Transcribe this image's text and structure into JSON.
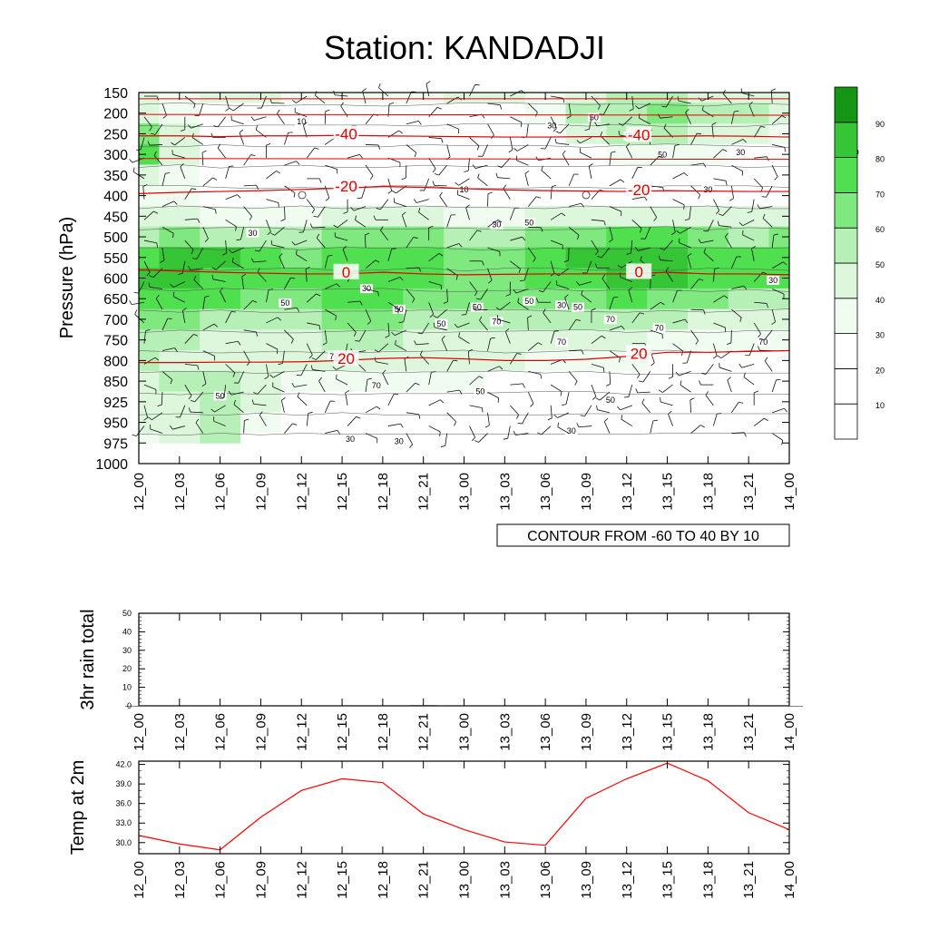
{
  "title": "Station: KANDADJI",
  "chart_data": [
    {
      "type": "heatmap",
      "name": "upper",
      "ylabel": "Pressure (hPa)",
      "y_ticks": [
        "150",
        "200",
        "250",
        "300",
        "350",
        "400",
        "450",
        "500",
        "550",
        "600",
        "650",
        "700",
        "750",
        "800",
        "850",
        "925",
        "950",
        "975",
        "1000"
      ],
      "x_ticks": [
        "12_00",
        "12_03",
        "12_06",
        "12_09",
        "12_12",
        "12_15",
        "12_18",
        "12_21",
        "13_00",
        "13_03",
        "13_06",
        "13_09",
        "13_12",
        "13_15",
        "13_18",
        "13_21",
        "14_00"
      ],
      "colorbar": {
        "ticks": [
          "10",
          "20",
          "30",
          "40",
          "50",
          "60",
          "70",
          "80",
          "90"
        ],
        "colors": [
          "#ffffff",
          "#ffffff",
          "#ffffff",
          "#f0fcf0",
          "#dcf7dc",
          "#b6f0b6",
          "#7fe87f",
          "#4fdf4f",
          "#35c535",
          "#149614"
        ]
      },
      "humidity_grid_rows_150_to_975": [
        [
          40,
          38,
          40,
          40,
          36,
          34,
          34,
          36,
          40,
          40,
          38,
          45,
          50,
          52,
          48,
          44,
          42
        ],
        [
          45,
          35,
          25,
          20,
          18,
          18,
          20,
          25,
          28,
          28,
          30,
          52,
          58,
          60,
          55,
          50,
          45
        ],
        [
          60,
          40,
          20,
          10,
          10,
          10,
          10,
          12,
          15,
          15,
          15,
          40,
          50,
          55,
          48,
          40,
          35
        ],
        [
          75,
          40,
          15,
          5,
          5,
          5,
          5,
          8,
          10,
          10,
          10,
          20,
          30,
          35,
          30,
          25,
          20
        ],
        [
          40,
          35,
          20,
          10,
          8,
          5,
          5,
          8,
          10,
          10,
          10,
          10,
          15,
          15,
          15,
          12,
          10
        ],
        [
          35,
          35,
          25,
          20,
          18,
          20,
          22,
          22,
          20,
          20,
          18,
          18,
          20,
          22,
          22,
          22,
          25
        ],
        [
          40,
          42,
          38,
          32,
          35,
          40,
          45,
          42,
          38,
          38,
          40,
          42,
          45,
          45,
          42,
          40,
          40
        ],
        [
          55,
          60,
          58,
          50,
          55,
          60,
          68,
          60,
          52,
          55,
          62,
          68,
          72,
          70,
          62,
          58,
          60
        ],
        [
          78,
          85,
          82,
          70,
          68,
          70,
          72,
          70,
          60,
          62,
          72,
          80,
          88,
          85,
          78,
          72,
          78
        ],
        [
          82,
          80,
          75,
          72,
          70,
          76,
          74,
          70,
          62,
          64,
          70,
          74,
          80,
          82,
          78,
          72,
          75
        ],
        [
          78,
          75,
          70,
          65,
          66,
          78,
          70,
          68,
          62,
          60,
          64,
          68,
          72,
          66,
          62,
          58,
          55
        ],
        [
          65,
          62,
          58,
          55,
          55,
          60,
          60,
          58,
          52,
          50,
          52,
          54,
          55,
          52,
          48,
          45,
          42
        ],
        [
          55,
          50,
          45,
          48,
          48,
          52,
          50,
          48,
          46,
          45,
          44,
          42,
          40,
          38,
          34,
          30,
          30
        ],
        [
          50,
          45,
          40,
          45,
          45,
          48,
          45,
          44,
          42,
          40,
          38,
          35,
          30,
          28,
          25,
          22,
          22
        ],
        [
          45,
          50,
          50,
          40,
          35,
          35,
          32,
          30,
          30,
          28,
          25,
          22,
          20,
          20,
          18,
          18,
          18
        ],
        [
          45,
          48,
          52,
          40,
          25,
          20,
          18,
          18,
          18,
          16,
          14,
          14,
          12,
          12,
          12,
          12,
          12
        ],
        [
          40,
          45,
          55,
          30,
          20,
          15,
          12,
          12,
          12,
          12,
          12,
          10,
          10,
          10,
          10,
          10,
          10
        ],
        [
          30,
          40,
          50,
          25,
          15,
          10,
          10,
          10,
          10,
          10,
          10,
          10,
          10,
          8,
          8,
          8,
          8
        ]
      ],
      "contour_labels": [
        "10",
        "30",
        "50",
        "70"
      ],
      "temperature_isotherms": [
        {
          "label": "-40",
          "pressure_by_time": [
            255,
            255,
            257,
            255,
            255,
            254,
            255,
            256,
            257,
            258,
            258,
            257,
            257,
            256,
            255,
            256,
            258
          ]
        },
        {
          "label": "-20",
          "pressure_by_time": [
            395,
            392,
            390,
            388,
            385,
            382,
            378,
            380,
            383,
            386,
            388,
            389,
            390,
            388,
            389,
            390,
            390
          ]
        },
        {
          "label": "0",
          "pressure_by_time": [
            580,
            583,
            586,
            588,
            590,
            590,
            586,
            590,
            592,
            591,
            590,
            590,
            590,
            586,
            590,
            590,
            592
          ]
        },
        {
          "label": "20",
          "pressure_by_time": [
            805,
            805,
            804,
            804,
            803,
            800,
            795,
            793,
            796,
            800,
            800,
            797,
            790,
            780,
            780,
            778,
            776
          ]
        }
      ],
      "annotation": "CONTOUR FROM -60 TO 40 BY 10"
    },
    {
      "type": "bar",
      "name": "rain",
      "ylabel": "3hr rain total",
      "ylim": [
        0,
        50
      ],
      "y_ticks": [
        "0",
        "10",
        "20",
        "30",
        "40",
        "50"
      ],
      "x_ticks": [
        "12_00",
        "12_03",
        "12_06",
        "12_09",
        "12_12",
        "12_15",
        "12_18",
        "12_21",
        "13_00",
        "13_03",
        "13_06",
        "13_09",
        "13_12",
        "13_15",
        "13_18",
        "13_21",
        "14_00"
      ],
      "values": [
        0,
        0,
        0,
        0,
        0,
        0,
        0,
        0.3,
        0,
        0,
        0,
        0,
        0,
        0,
        0,
        0,
        0
      ]
    },
    {
      "type": "line",
      "name": "temp",
      "ylabel": "Temp at 2m",
      "ylim": [
        28.3,
        42.5
      ],
      "y_ticks": [
        "30.0",
        "33.0",
        "36.0",
        "39.0",
        "42.0"
      ],
      "x_ticks": [
        "12_00",
        "12_03",
        "12_06",
        "12_09",
        "12_12",
        "12_15",
        "12_18",
        "12_21",
        "13_00",
        "13_03",
        "13_06",
        "13_09",
        "13_12",
        "13_15",
        "13_18",
        "13_21",
        "14_00"
      ],
      "values": [
        31.1,
        29.8,
        28.9,
        33.9,
        38.0,
        39.8,
        39.2,
        34.4,
        32.0,
        30.1,
        29.6,
        36.8,
        39.8,
        42.2,
        39.5,
        34.6,
        32.0
      ],
      "color": "#ff0000"
    }
  ]
}
